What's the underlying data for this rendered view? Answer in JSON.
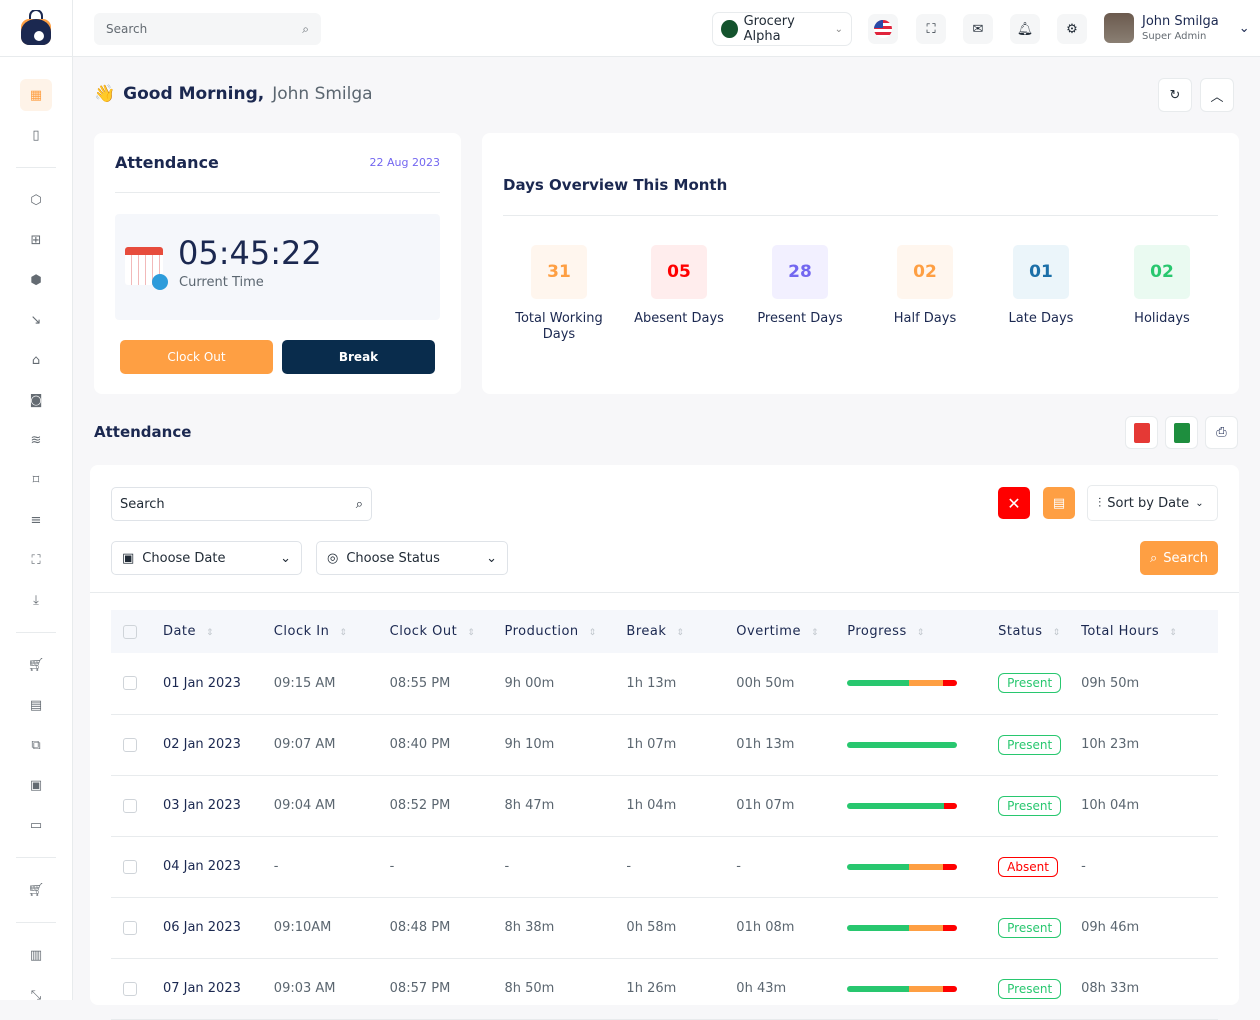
{
  "header": {
    "search_placeholder": "Search",
    "store": "Grocery Alpha",
    "user_name": "John Smilga",
    "user_role": "Super Admin"
  },
  "greeting": {
    "prefix": "Good Morning,",
    "name": "John Smilga"
  },
  "attendance_card": {
    "title": "Attendance",
    "date": "22 Aug 2023",
    "time": "05:45:22",
    "time_label": "Current Time",
    "clock_out": "Clock Out",
    "break": "Break"
  },
  "overview": {
    "title": "Days Overview This Month",
    "stats": [
      {
        "value": "31",
        "label": "Total Working Days",
        "color": "#fe9f43",
        "bg": "#fff6ee"
      },
      {
        "value": "05",
        "label": "Abesent Days",
        "color": "#ff0000",
        "bg": "#ffeded"
      },
      {
        "value": "28",
        "label": "Present Days",
        "color": "#7367f0",
        "bg": "#f2f0ff"
      },
      {
        "value": "02",
        "label": "Half Days",
        "color": "#fe9f43",
        "bg": "#fff6ee"
      },
      {
        "value": "01",
        "label": "Late Days",
        "color": "#1b6fa8",
        "bg": "#ebf5fa"
      },
      {
        "value": "02",
        "label": "Holidays",
        "color": "#28c76f",
        "bg": "#eafaf1"
      }
    ]
  },
  "table_section": {
    "title": "Attendance",
    "search_placeholder": "Search",
    "sort": "Sort by Date",
    "choose_date": "Choose Date",
    "choose_status": "Choose Status",
    "search_button": "Search",
    "columns": [
      "Date",
      "Clock In",
      "Clock Out",
      "Production",
      "Break",
      "Overtime",
      "Progress",
      "Status",
      "Total Hours"
    ],
    "rows": [
      {
        "date": "01 Jan 2023",
        "in": "09:15 AM",
        "out": "08:55 PM",
        "prod": "9h 00m",
        "brk": "1h 13m",
        "ot": "00h 50m",
        "progress": [
          56,
          31,
          13
        ],
        "status": "Present",
        "total": "09h 50m"
      },
      {
        "date": "02 Jan 2023",
        "in": "09:07 AM",
        "out": "08:40 PM",
        "prod": "9h 10m",
        "brk": "1h 07m",
        "ot": "01h 13m",
        "progress": [
          100,
          0,
          0
        ],
        "status": "Present",
        "total": "10h 23m"
      },
      {
        "date": "03 Jan 2023",
        "in": "09:04 AM",
        "out": "08:52 PM",
        "prod": "8h 47m",
        "brk": "1h 04m",
        "ot": "01h 07m",
        "progress": [
          88,
          0,
          12
        ],
        "status": "Present",
        "total": "10h 04m"
      },
      {
        "date": "04 Jan 2023",
        "in": "-",
        "out": "-",
        "prod": "-",
        "brk": "-",
        "ot": "-",
        "progress": [
          56,
          31,
          13
        ],
        "status": "Absent",
        "total": "-"
      },
      {
        "date": "06 Jan 2023",
        "in": "09:10AM",
        "out": "08:48 PM",
        "prod": "8h 38m",
        "brk": "0h 58m",
        "ot": "01h 08m",
        "progress": [
          56,
          31,
          13
        ],
        "status": "Present",
        "total": "09h 46m"
      },
      {
        "date": "07 Jan 2023",
        "in": "09:03 AM",
        "out": "08:57 PM",
        "prod": "8h 50m",
        "brk": "1h 26m",
        "ot": "0h 43m",
        "progress": [
          56,
          31,
          13
        ],
        "status": "Present",
        "total": "08h 33m"
      }
    ]
  }
}
